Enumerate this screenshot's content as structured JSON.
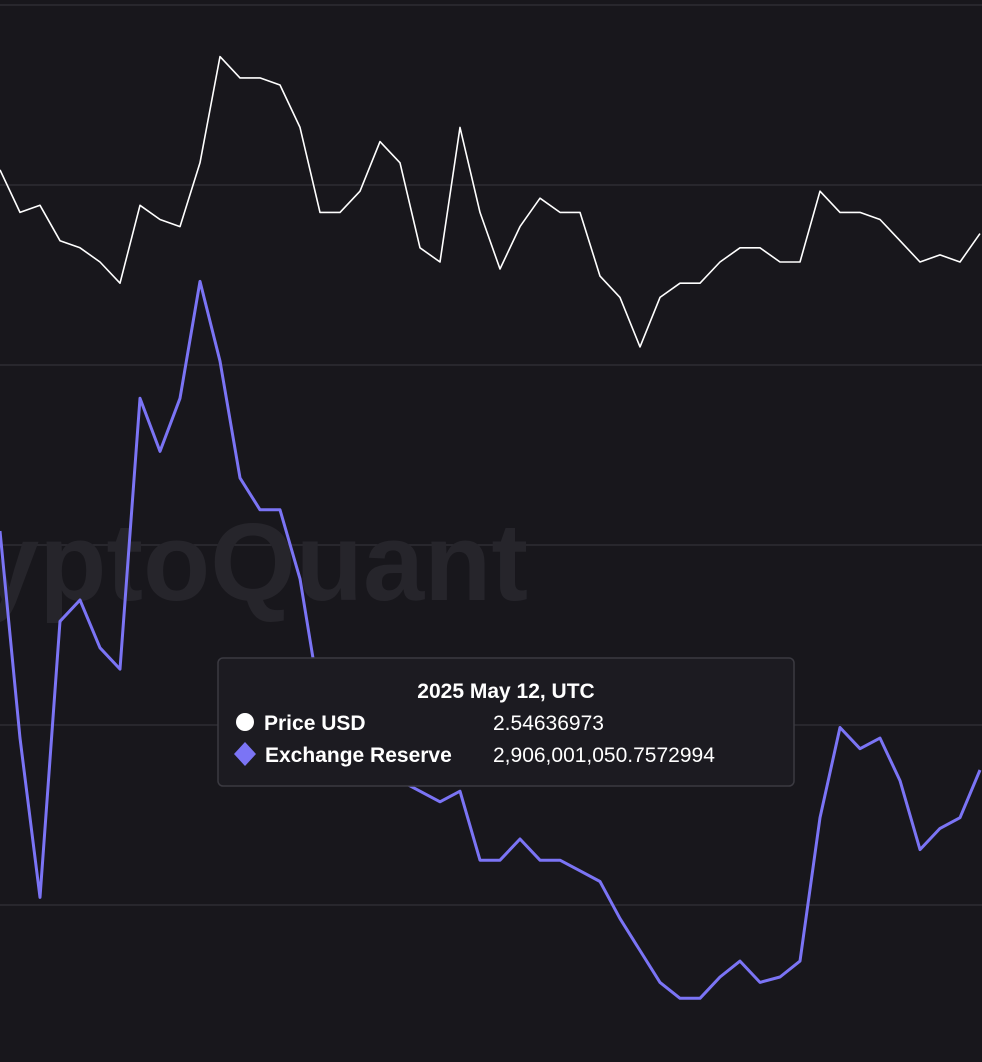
{
  "chart_data": {
    "type": "line",
    "watermark": "CryptoQuant",
    "series": [
      {
        "name": "Price USD",
        "color": "#ffffff",
        "axis": "y",
        "values": [
          2.66,
          2.6,
          2.61,
          2.56,
          2.55,
          2.53,
          2.5,
          2.61,
          2.59,
          2.58,
          2.67,
          2.82,
          2.79,
          2.79,
          2.78,
          2.72,
          2.6,
          2.6,
          2.63,
          2.7,
          2.67,
          2.55,
          2.53,
          2.72,
          2.6,
          2.52,
          2.58,
          2.62,
          2.6,
          2.6,
          2.51,
          2.48,
          2.41,
          2.48,
          2.5,
          2.5,
          2.53,
          2.55,
          2.55,
          2.53,
          2.53,
          2.63,
          2.6,
          2.6,
          2.59,
          2.56,
          2.53,
          2.54,
          2.53,
          2.57
        ]
      },
      {
        "name": "Exchange Reserve",
        "color": "#7b74f5",
        "axis": "y2",
        "values": [
          2957000000,
          2918000000,
          2888000000,
          2940000000,
          2944000000,
          2935000000,
          2931000000,
          2982000000,
          2972000000,
          2982000000,
          3004000000,
          2989000000,
          2967000000,
          2961000000,
          2961000000,
          2948000000,
          2925000000,
          2920000000,
          2914000000,
          2912000000,
          2910000000,
          2908000000,
          2906000000,
          2908000000,
          2895000000,
          2895000000,
          2899000000,
          2895000000,
          2895000000,
          2893000000,
          2891000000,
          2884000000,
          2878000000,
          2872000000,
          2869000000,
          2869000000,
          2873000000,
          2876000000,
          2872000000,
          2873000000,
          2876000000,
          2903000000,
          2920000000,
          2916000000,
          2918000000,
          2910000000,
          2897000000,
          2901000000,
          2903000000,
          2912000000
        ]
      }
    ],
    "ylim": [
      1.4,
      2.9
    ],
    "y2lim": [
      2857000000,
      3057000000
    ],
    "tooltip": {
      "title": "2025 May 12, UTC",
      "items": [
        {
          "value": 2.54636973
        },
        {
          "value": 2906001050.7572994,
          "label": "2,906,001,050.7572994"
        }
      ]
    }
  }
}
